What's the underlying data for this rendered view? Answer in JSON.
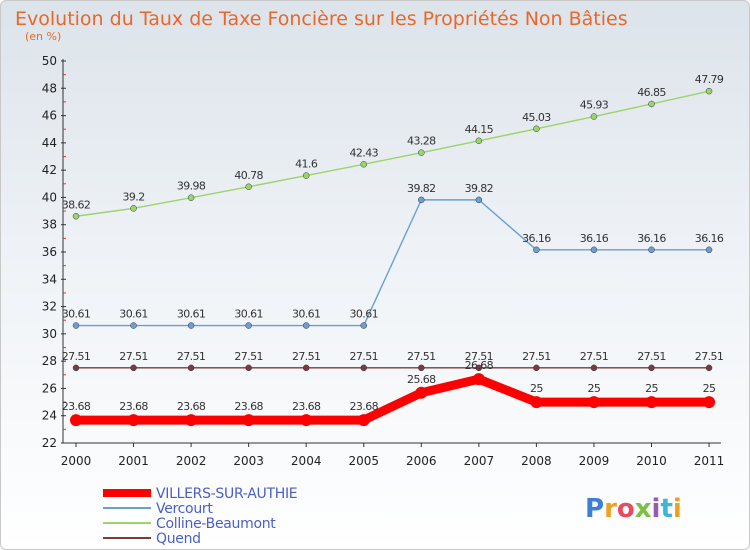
{
  "chart_data": {
    "type": "line",
    "title": "Evolution du Taux de Taxe Foncière sur les Propriétés Non Bâties",
    "subtitle": "(en %)",
    "x": [
      "2000",
      "2001",
      "2002",
      "2003",
      "2004",
      "2005",
      "2006",
      "2007",
      "2008",
      "2009",
      "2010",
      "2011"
    ],
    "ylim": [
      22,
      50
    ],
    "yticks": [
      22,
      24,
      26,
      28,
      30,
      32,
      34,
      36,
      38,
      40,
      42,
      44,
      46,
      48,
      50
    ],
    "grid": false,
    "legend_position": "bottom-left",
    "series": [
      {
        "name": "VILLERS-SUR-AUTHIE",
        "color": "#ff0000",
        "values": [
          23.68,
          23.68,
          23.68,
          23.68,
          23.68,
          23.68,
          25.68,
          26.68,
          25,
          25,
          25,
          25
        ],
        "labels": [
          "23.68",
          "23.68",
          "23.68",
          "23.68",
          "23.68",
          "23.68",
          "25.68",
          "26.68",
          "25",
          "25",
          "25",
          "25"
        ]
      },
      {
        "name": "Vercourt",
        "color": "#6a9fd0",
        "values": [
          30.61,
          30.61,
          30.61,
          30.61,
          30.61,
          30.61,
          39.82,
          39.82,
          36.16,
          36.16,
          36.16,
          36.16
        ],
        "labels": [
          "30.61",
          "30.61",
          "30.61",
          "30.61",
          "30.61",
          "30.61",
          "39.82",
          "39.82",
          "36.16",
          "36.16",
          "36.16",
          "36.16"
        ]
      },
      {
        "name": "Colline-Beaumont",
        "color": "#9bd46a",
        "values": [
          38.62,
          39.2,
          39.98,
          40.78,
          41.6,
          42.43,
          43.28,
          44.15,
          45.03,
          45.93,
          46.85,
          47.79
        ],
        "labels": [
          "38.62",
          "39.2",
          "39.98",
          "40.78",
          "41.6",
          "42.43",
          "43.28",
          "44.15",
          "45.03",
          "45.93",
          "46.85",
          "47.79"
        ]
      },
      {
        "name": "Quend",
        "color": "#7a3b3b",
        "values": [
          27.51,
          27.51,
          27.51,
          27.51,
          27.51,
          27.51,
          27.51,
          27.51,
          27.51,
          27.51,
          27.51,
          27.51
        ],
        "labels": [
          "27.51",
          "27.51",
          "27.51",
          "27.51",
          "27.51",
          "27.51",
          "27.51",
          "27.51",
          "27.51",
          "27.51",
          "27.51",
          "27.51"
        ]
      }
    ]
  },
  "brand": {
    "name": "Proxiti"
  }
}
